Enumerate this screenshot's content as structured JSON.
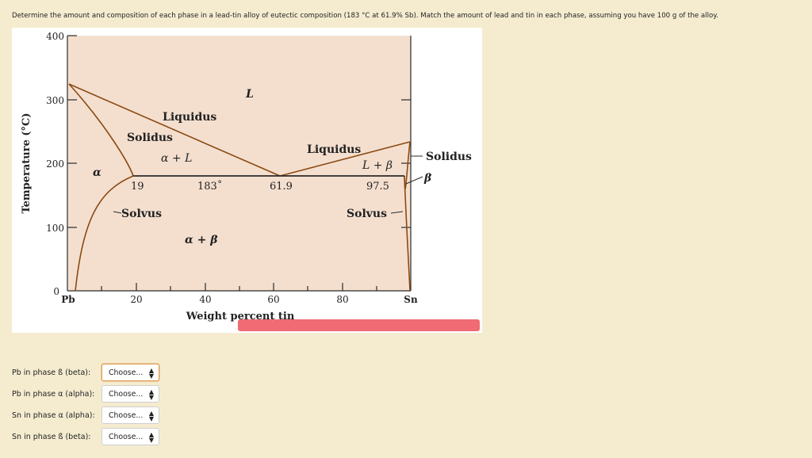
{
  "question": "Determine the amount and composition of each phase in a lead-tin alloy of eutectic composition (183 °C at 61.9% Sb). Match the amount of lead and tin in each phase, assuming you have 100 g of the alloy.",
  "figure": {
    "y_axis_label": "Temperature (°C)",
    "x_axis_label": "Weight percent tin",
    "y_ticks": [
      "400",
      "300",
      "200",
      "100",
      "0"
    ],
    "x_ticks": [
      "Pb",
      "20",
      "40",
      "60",
      "80",
      "Sn"
    ],
    "regions": {
      "liquid": "L",
      "alpha_liquid": "α + L",
      "liquid_beta": "L + β",
      "alpha": "α",
      "beta": "β",
      "alpha_beta": "α + β"
    },
    "labels": {
      "liquidus_left": "Liquidus",
      "liquidus_right": "Liquidus",
      "solidus_left": "Solidus",
      "solidus_right": "Solidus",
      "solvus_left": "Solvus",
      "solvus_right": "Solvus",
      "eutectic_temp": "183˚",
      "alpha_limit": "19",
      "eutectic_comp": "61.9",
      "beta_limit": "97.5"
    },
    "colors": {
      "background": "#f4dfcf",
      "curve": "#8b4a12",
      "line": "#2a2a2a"
    }
  },
  "questions": [
    {
      "label": "Pb in phase ß (beta):",
      "value": "Choose..."
    },
    {
      "label": "Pb in phase α (alpha):",
      "value": "Choose..."
    },
    {
      "label": "Sn in phase α (alpha):",
      "value": "Choose..."
    },
    {
      "label": "Sn in phase ß (beta):",
      "value": "Choose..."
    }
  ]
}
